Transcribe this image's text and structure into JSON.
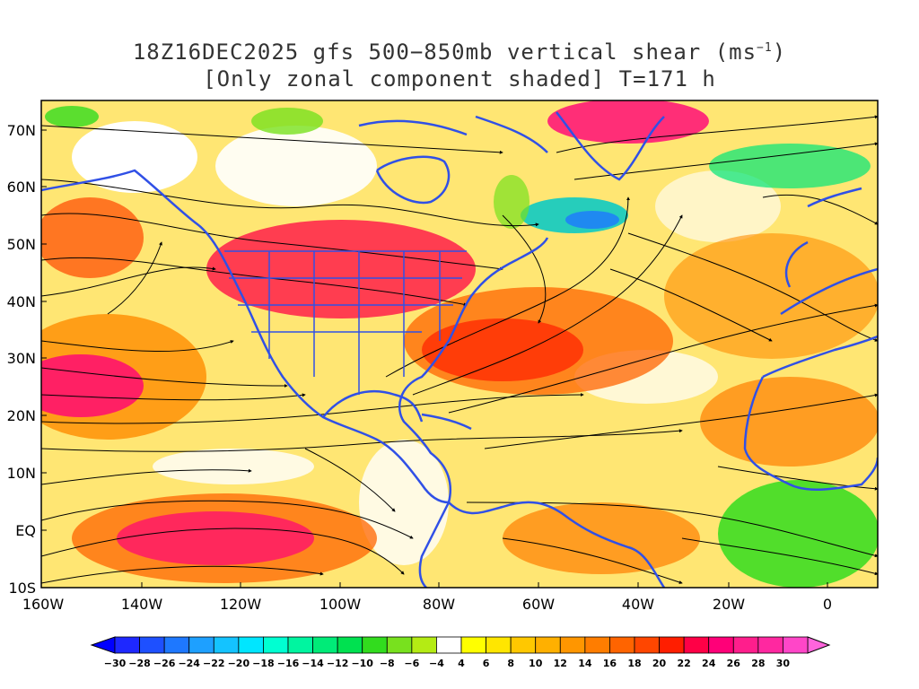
{
  "title": {
    "line1_prefix": "18Z16DEC2025 gfs 500−850mb vertical shear (ms",
    "line1_sup": "−1",
    "line1_suffix": ")",
    "line2": "[Only zonal component shaded] T=171 h"
  },
  "axes": {
    "lat_labels": [
      "70N",
      "60N",
      "50N",
      "40N",
      "30N",
      "20N",
      "10N",
      "EQ",
      "10S"
    ],
    "lon_labels": [
      "160W",
      "140W",
      "120W",
      "100W",
      "80W",
      "60W",
      "40W",
      "20W",
      "0"
    ]
  },
  "colorbar": {
    "labels": [
      "−30",
      "−28",
      "−26",
      "−24",
      "−22",
      "−20",
      "−18",
      "−16",
      "−14",
      "−12",
      "−10",
      "−8",
      "−6",
      "−4",
      "4",
      "6",
      "8",
      "10",
      "12",
      "14",
      "16",
      "18",
      "20",
      "22",
      "24",
      "26",
      "28",
      "30"
    ],
    "colors": [
      "#1e28ff",
      "#1e50ff",
      "#1e78ff",
      "#1ea0ff",
      "#14c3ff",
      "#00e6ff",
      "#00ffd2",
      "#00f5a0",
      "#00eb78",
      "#00e150",
      "#32dc1e",
      "#78e11e",
      "#b4eb14",
      "#ffffff",
      "#ffff00",
      "#ffe600",
      "#ffc800",
      "#ffb000",
      "#ff9600",
      "#ff7d00",
      "#ff6400",
      "#ff4600",
      "#ff1e00",
      "#ff0046",
      "#ff0078",
      "#ff1e8c",
      "#ff28a0",
      "#ff46c8"
    ],
    "left_arrow_color": "#0000ff",
    "right_arrow_color": "#ff64dc"
  }
}
